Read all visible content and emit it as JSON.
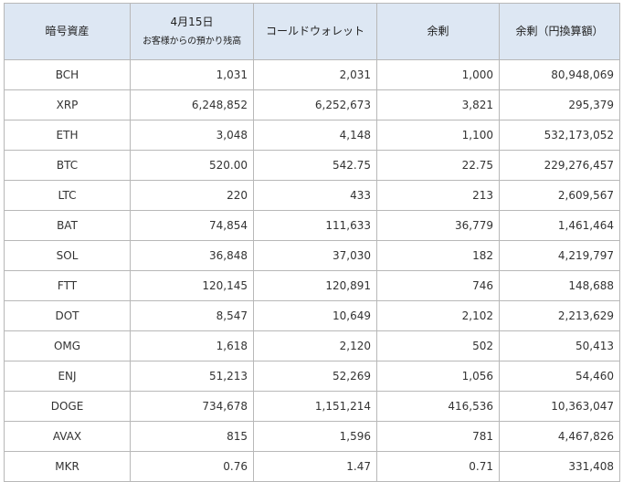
{
  "table": {
    "headers": {
      "asset": "暗号資産",
      "customer_date": "4月15日",
      "customer_label": "お客様からの預かり残高",
      "cold_wallet": "コールドウォレット",
      "surplus": "余剰",
      "surplus_yen": "余剰（円換算額）"
    },
    "rows": [
      {
        "asset": "BCH",
        "customer": "1,031",
        "cold": "2,031",
        "surplus": "1,000",
        "yen": "80,948,069"
      },
      {
        "asset": "XRP",
        "customer": "6,248,852",
        "cold": "6,252,673",
        "surplus": "3,821",
        "yen": "295,379"
      },
      {
        "asset": "ETH",
        "customer": "3,048",
        "cold": "4,148",
        "surplus": "1,100",
        "yen": "532,173,052"
      },
      {
        "asset": "BTC",
        "customer": "520.00",
        "cold": "542.75",
        "surplus": "22.75",
        "yen": "229,276,457"
      },
      {
        "asset": "LTC",
        "customer": "220",
        "cold": "433",
        "surplus": "213",
        "yen": "2,609,567"
      },
      {
        "asset": "BAT",
        "customer": "74,854",
        "cold": "111,633",
        "surplus": "36,779",
        "yen": "1,461,464"
      },
      {
        "asset": "SOL",
        "customer": "36,848",
        "cold": "37,030",
        "surplus": "182",
        "yen": "4,219,797"
      },
      {
        "asset": "FTT",
        "customer": "120,145",
        "cold": "120,891",
        "surplus": "746",
        "yen": "148,688"
      },
      {
        "asset": "DOT",
        "customer": "8,547",
        "cold": "10,649",
        "surplus": "2,102",
        "yen": "2,213,629"
      },
      {
        "asset": "OMG",
        "customer": "1,618",
        "cold": "2,120",
        "surplus": "502",
        "yen": "50,413"
      },
      {
        "asset": "ENJ",
        "customer": "51,213",
        "cold": "52,269",
        "surplus": "1,056",
        "yen": "54,460"
      },
      {
        "asset": "DOGE",
        "customer": "734,678",
        "cold": "1,151,214",
        "surplus": "416,536",
        "yen": "10,363,047"
      },
      {
        "asset": "AVAX",
        "customer": "815",
        "cold": "1,596",
        "surplus": "781",
        "yen": "4,467,826"
      },
      {
        "asset": "MKR",
        "customer": "0.76",
        "cold": "1.47",
        "surplus": "0.71",
        "yen": "331,408"
      }
    ]
  }
}
